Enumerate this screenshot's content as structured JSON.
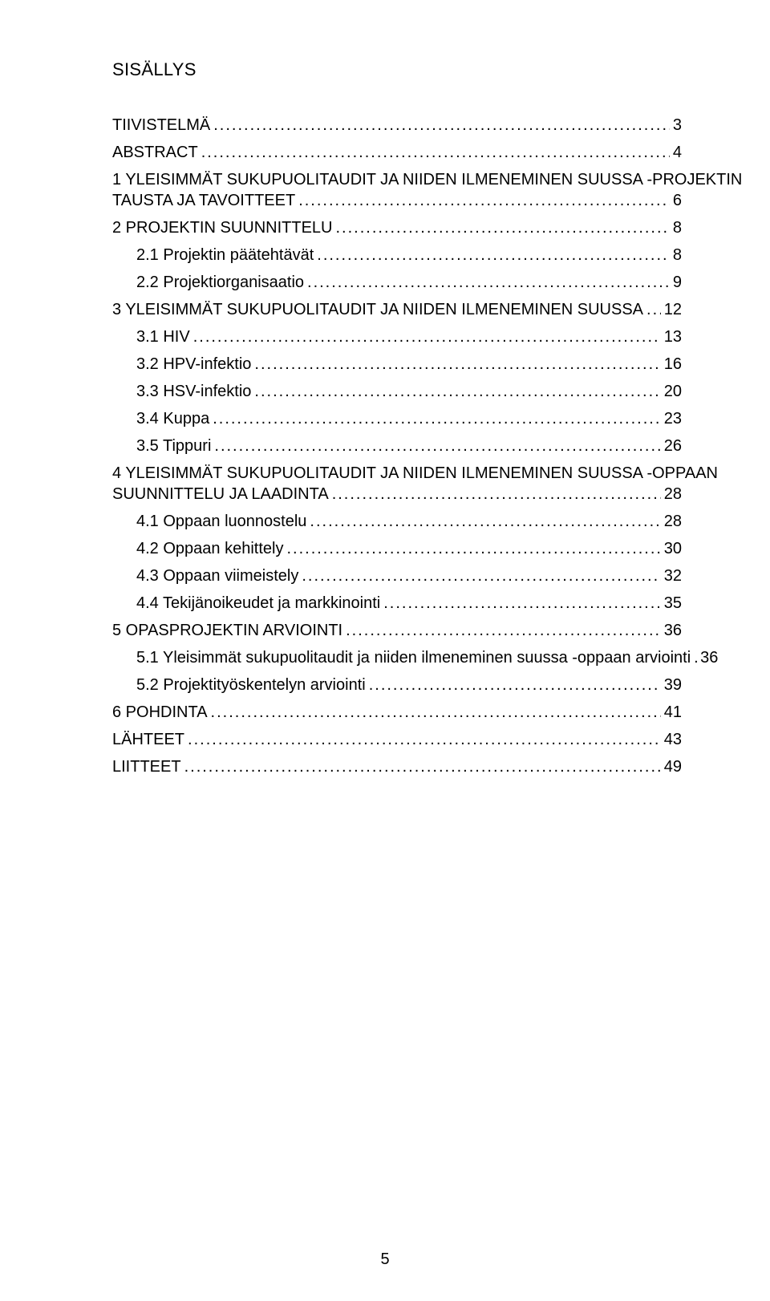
{
  "heading": "SISÄLLYS",
  "page_number": "5",
  "toc": [
    {
      "indent": 0,
      "label": "TIIVISTELMÄ",
      "page": "3"
    },
    {
      "indent": 0,
      "label": "ABSTRACT",
      "page": "4"
    },
    {
      "indent": 0,
      "label": "1  YLEISIMMÄT SUKUPUOLITAUDIT JA NIIDEN ILMENEMINEN SUUSSA -PROJEKTIN TAUSTA JA TAVOITTEET",
      "page": "6",
      "wrap_before_leader": true
    },
    {
      "indent": 0,
      "label": "2  PROJEKTIN SUUNNITTELU",
      "page": "8"
    },
    {
      "indent": 1,
      "label": "2.1  Projektin päätehtävät",
      "page": "8"
    },
    {
      "indent": 1,
      "label": "2.2  Projektiorganisaatio",
      "page": "9"
    },
    {
      "indent": 0,
      "label": "3  YLEISIMMÄT SUKUPUOLITAUDIT JA NIIDEN ILMENEMINEN SUUSSA",
      "page": "12"
    },
    {
      "indent": 1,
      "label": "3.1  HIV",
      "page": "13"
    },
    {
      "indent": 1,
      "label": "3.2  HPV-infektio",
      "page": "16"
    },
    {
      "indent": 1,
      "label": "3.3  HSV-infektio",
      "page": "20"
    },
    {
      "indent": 1,
      "label": "3.4  Kuppa",
      "page": "23"
    },
    {
      "indent": 1,
      "label": "3.5  Tippuri",
      "page": "26"
    },
    {
      "indent": 0,
      "label": "4  YLEISIMMÄT SUKUPUOLITAUDIT JA NIIDEN ILMENEMINEN SUUSSA -OPPAAN SUUNNITTELU JA LAADINTA",
      "page": "28",
      "wrap_before_leader": true
    },
    {
      "indent": 1,
      "label": "4.1  Oppaan luonnostelu",
      "page": "28"
    },
    {
      "indent": 1,
      "label": "4.2  Oppaan kehittely",
      "page": "30"
    },
    {
      "indent": 1,
      "label": "4.3  Oppaan viimeistely",
      "page": "32"
    },
    {
      "indent": 1,
      "label": "4.4  Tekijänoikeudet ja markkinointi",
      "page": "35"
    },
    {
      "indent": 0,
      "label": "5  OPASPROJEKTIN ARVIOINTI",
      "page": "36"
    },
    {
      "indent": 1,
      "label": "5.1  Yleisimmät sukupuolitaudit ja niiden ilmeneminen suussa -oppaan arviointi",
      "page": "36"
    },
    {
      "indent": 1,
      "label": "5.2  Projektityöskentelyn arviointi",
      "page": "39"
    },
    {
      "indent": 0,
      "label": "6  POHDINTA",
      "page": "41"
    },
    {
      "indent": 0,
      "label": "LÄHTEET",
      "page": "43"
    },
    {
      "indent": 0,
      "label": "LIITTEET",
      "page": "49"
    }
  ]
}
